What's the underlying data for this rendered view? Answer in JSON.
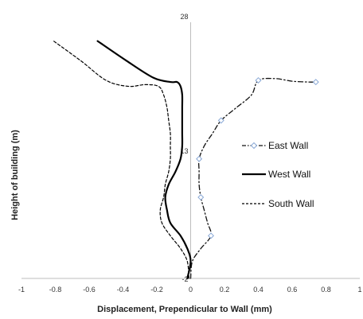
{
  "chart_data": {
    "type": "line",
    "xlabel": "Displacement, Prependicular to Wall (mm)",
    "ylabel": "Height of building (m)",
    "xlim": [
      -1,
      1
    ],
    "ylim": [
      -2,
      28
    ],
    "x_ticks": [
      "-1",
      "-0.8",
      "-0.6",
      "-0.4",
      "-0.2",
      "0",
      "0.2",
      "0.4",
      "0.6",
      "0.8",
      "1"
    ],
    "y_tick_labels": [
      {
        "value": 28,
        "label": "28"
      },
      {
        "value": 13,
        "label": "13"
      },
      {
        "value": -2,
        "label": "-2"
      }
    ],
    "grid": false,
    "legend_position": "right",
    "series": [
      {
        "name": "East Wall",
        "style": "dash-dot",
        "color": "#111111",
        "marker_color": "#8aa9d6",
        "points": [
          [
            0.0,
            -2.0
          ],
          [
            0.01,
            0.0
          ],
          [
            0.06,
            1.5
          ],
          [
            0.12,
            3.0
          ],
          [
            0.1,
            4.5
          ],
          [
            0.08,
            6.0
          ],
          [
            0.06,
            7.5
          ],
          [
            0.05,
            9.0
          ],
          [
            0.05,
            10.5
          ],
          [
            0.05,
            12.0
          ],
          [
            0.08,
            13.5
          ],
          [
            0.13,
            15.0
          ],
          [
            0.18,
            16.5
          ],
          [
            0.27,
            18.0
          ],
          [
            0.36,
            19.5
          ],
          [
            0.4,
            21.2
          ],
          [
            0.5,
            21.4
          ],
          [
            0.6,
            21.1
          ],
          [
            0.7,
            21.0
          ],
          [
            0.74,
            21.0
          ]
        ],
        "marker_points": [
          [
            0.12,
            3.0
          ],
          [
            0.06,
            7.5
          ],
          [
            0.05,
            12.0
          ],
          [
            0.18,
            16.5
          ],
          [
            0.4,
            21.2
          ],
          [
            0.74,
            21.0
          ]
        ]
      },
      {
        "name": "West Wall",
        "style": "solid",
        "color": "#000000",
        "points": [
          [
            -0.02,
            -2.0
          ],
          [
            0.0,
            0.0
          ],
          [
            -0.02,
            1.5
          ],
          [
            -0.06,
            3.0
          ],
          [
            -0.12,
            4.5
          ],
          [
            -0.14,
            6.0
          ],
          [
            -0.15,
            7.5
          ],
          [
            -0.13,
            9.0
          ],
          [
            -0.09,
            10.5
          ],
          [
            -0.06,
            12.0
          ],
          [
            -0.05,
            13.5
          ],
          [
            -0.05,
            15.0
          ],
          [
            -0.05,
            16.5
          ],
          [
            -0.05,
            18.0
          ],
          [
            -0.05,
            19.5
          ],
          [
            -0.06,
            20.5
          ],
          [
            -0.08,
            21.0
          ],
          [
            -0.12,
            21.0
          ],
          [
            -0.22,
            21.5
          ],
          [
            -0.38,
            23.5
          ],
          [
            -0.55,
            25.8
          ]
        ]
      },
      {
        "name": "South Wall",
        "style": "dashed",
        "color": "#000000",
        "points": [
          [
            -0.01,
            -2.0
          ],
          [
            -0.02,
            0.0
          ],
          [
            -0.06,
            1.5
          ],
          [
            -0.12,
            3.0
          ],
          [
            -0.17,
            4.5
          ],
          [
            -0.18,
            6.0
          ],
          [
            -0.16,
            7.5
          ],
          [
            -0.15,
            9.0
          ],
          [
            -0.13,
            10.5
          ],
          [
            -0.12,
            12.0
          ],
          [
            -0.12,
            13.5
          ],
          [
            -0.12,
            15.0
          ],
          [
            -0.13,
            16.5
          ],
          [
            -0.14,
            18.0
          ],
          [
            -0.16,
            19.5
          ],
          [
            -0.19,
            20.5
          ],
          [
            -0.27,
            20.7
          ],
          [
            -0.37,
            20.5
          ],
          [
            -0.5,
            21.2
          ],
          [
            -0.65,
            23.5
          ],
          [
            -0.81,
            25.8
          ]
        ]
      }
    ]
  }
}
